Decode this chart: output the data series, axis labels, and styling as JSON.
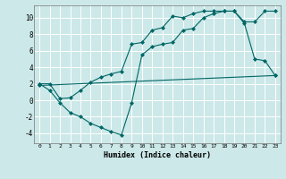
{
  "xlabel": "Humidex (Indice chaleur)",
  "bg_color": "#cce8e8",
  "grid_color": "#ffffff",
  "line_color": "#006666",
  "xlim": [
    -0.5,
    23.5
  ],
  "ylim": [
    -5.2,
    11.5
  ],
  "xticks": [
    0,
    1,
    2,
    3,
    4,
    5,
    6,
    7,
    8,
    9,
    10,
    11,
    12,
    13,
    14,
    15,
    16,
    17,
    18,
    19,
    20,
    21,
    22,
    23
  ],
  "yticks": [
    -4,
    -2,
    0,
    2,
    4,
    6,
    8,
    10
  ],
  "line1_x": [
    0,
    1,
    2,
    3,
    4,
    5,
    6,
    7,
    8,
    9,
    10,
    11,
    12,
    13,
    14,
    15,
    16,
    17,
    18,
    19,
    20,
    21,
    22,
    23
  ],
  "line1_y": [
    2.0,
    1.2,
    -0.3,
    -1.5,
    -2.0,
    -2.8,
    -3.3,
    -3.8,
    -4.2,
    -0.3,
    5.5,
    6.5,
    6.8,
    7.0,
    8.5,
    8.7,
    10.0,
    10.5,
    10.8,
    10.8,
    9.3,
    5.0,
    4.8,
    3.0
  ],
  "line2_x": [
    0,
    1,
    2,
    3,
    4,
    5,
    6,
    7,
    8,
    9,
    10,
    11,
    12,
    13,
    14,
    15,
    16,
    17,
    18,
    19,
    20,
    21,
    22,
    23
  ],
  "line2_y": [
    2.0,
    2.0,
    0.2,
    0.3,
    1.2,
    2.2,
    2.8,
    3.2,
    3.5,
    6.8,
    7.0,
    8.5,
    8.8,
    10.2,
    10.0,
    10.5,
    10.8,
    10.8,
    10.8,
    10.8,
    9.5,
    9.5,
    10.8,
    10.8
  ],
  "line3_x": [
    0,
    23
  ],
  "line3_y": [
    1.8,
    3.0
  ]
}
